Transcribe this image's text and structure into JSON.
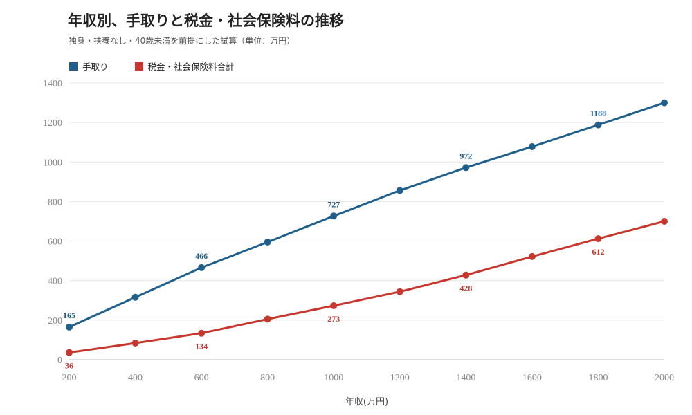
{
  "chart_data": {
    "type": "line",
    "title": "年収別、手取りと税金・社会保険料の推移",
    "subtitle": "独身・扶養なし・40歳未満を前提にした試算（単位：万円）",
    "xlabel": "年収(万円)",
    "ylabel": "",
    "x": [
      200,
      400,
      600,
      800,
      1000,
      1200,
      1400,
      1600,
      1800,
      2000
    ],
    "xlim": [
      200,
      2000
    ],
    "ylim": [
      0,
      1400
    ],
    "yticks": [
      0,
      200,
      400,
      600,
      800,
      1000,
      1200,
      1400
    ],
    "grid": true,
    "legend_position": "top-left",
    "series": [
      {
        "name": "手取り",
        "color": "#1f5f8b",
        "values": [
          165,
          316,
          466,
          595,
          727,
          856,
          972,
          1078,
          1188,
          1300
        ],
        "labeled_points": [
          {
            "x": 200,
            "label": "165"
          },
          {
            "x": 600,
            "label": "466"
          },
          {
            "x": 1000,
            "label": "727"
          },
          {
            "x": 1400,
            "label": "972"
          },
          {
            "x": 1800,
            "label": "1188"
          }
        ],
        "label_position": "above"
      },
      {
        "name": "税金・社会保険料合計",
        "color": "#c8372d",
        "values": [
          36,
          84,
          134,
          205,
          273,
          344,
          428,
          522,
          612,
          700
        ],
        "labeled_points": [
          {
            "x": 200,
            "label": "36"
          },
          {
            "x": 600,
            "label": "134"
          },
          {
            "x": 1000,
            "label": "273"
          },
          {
            "x": 1400,
            "label": "428"
          },
          {
            "x": 1800,
            "label": "612"
          }
        ],
        "label_position": "below"
      }
    ]
  }
}
